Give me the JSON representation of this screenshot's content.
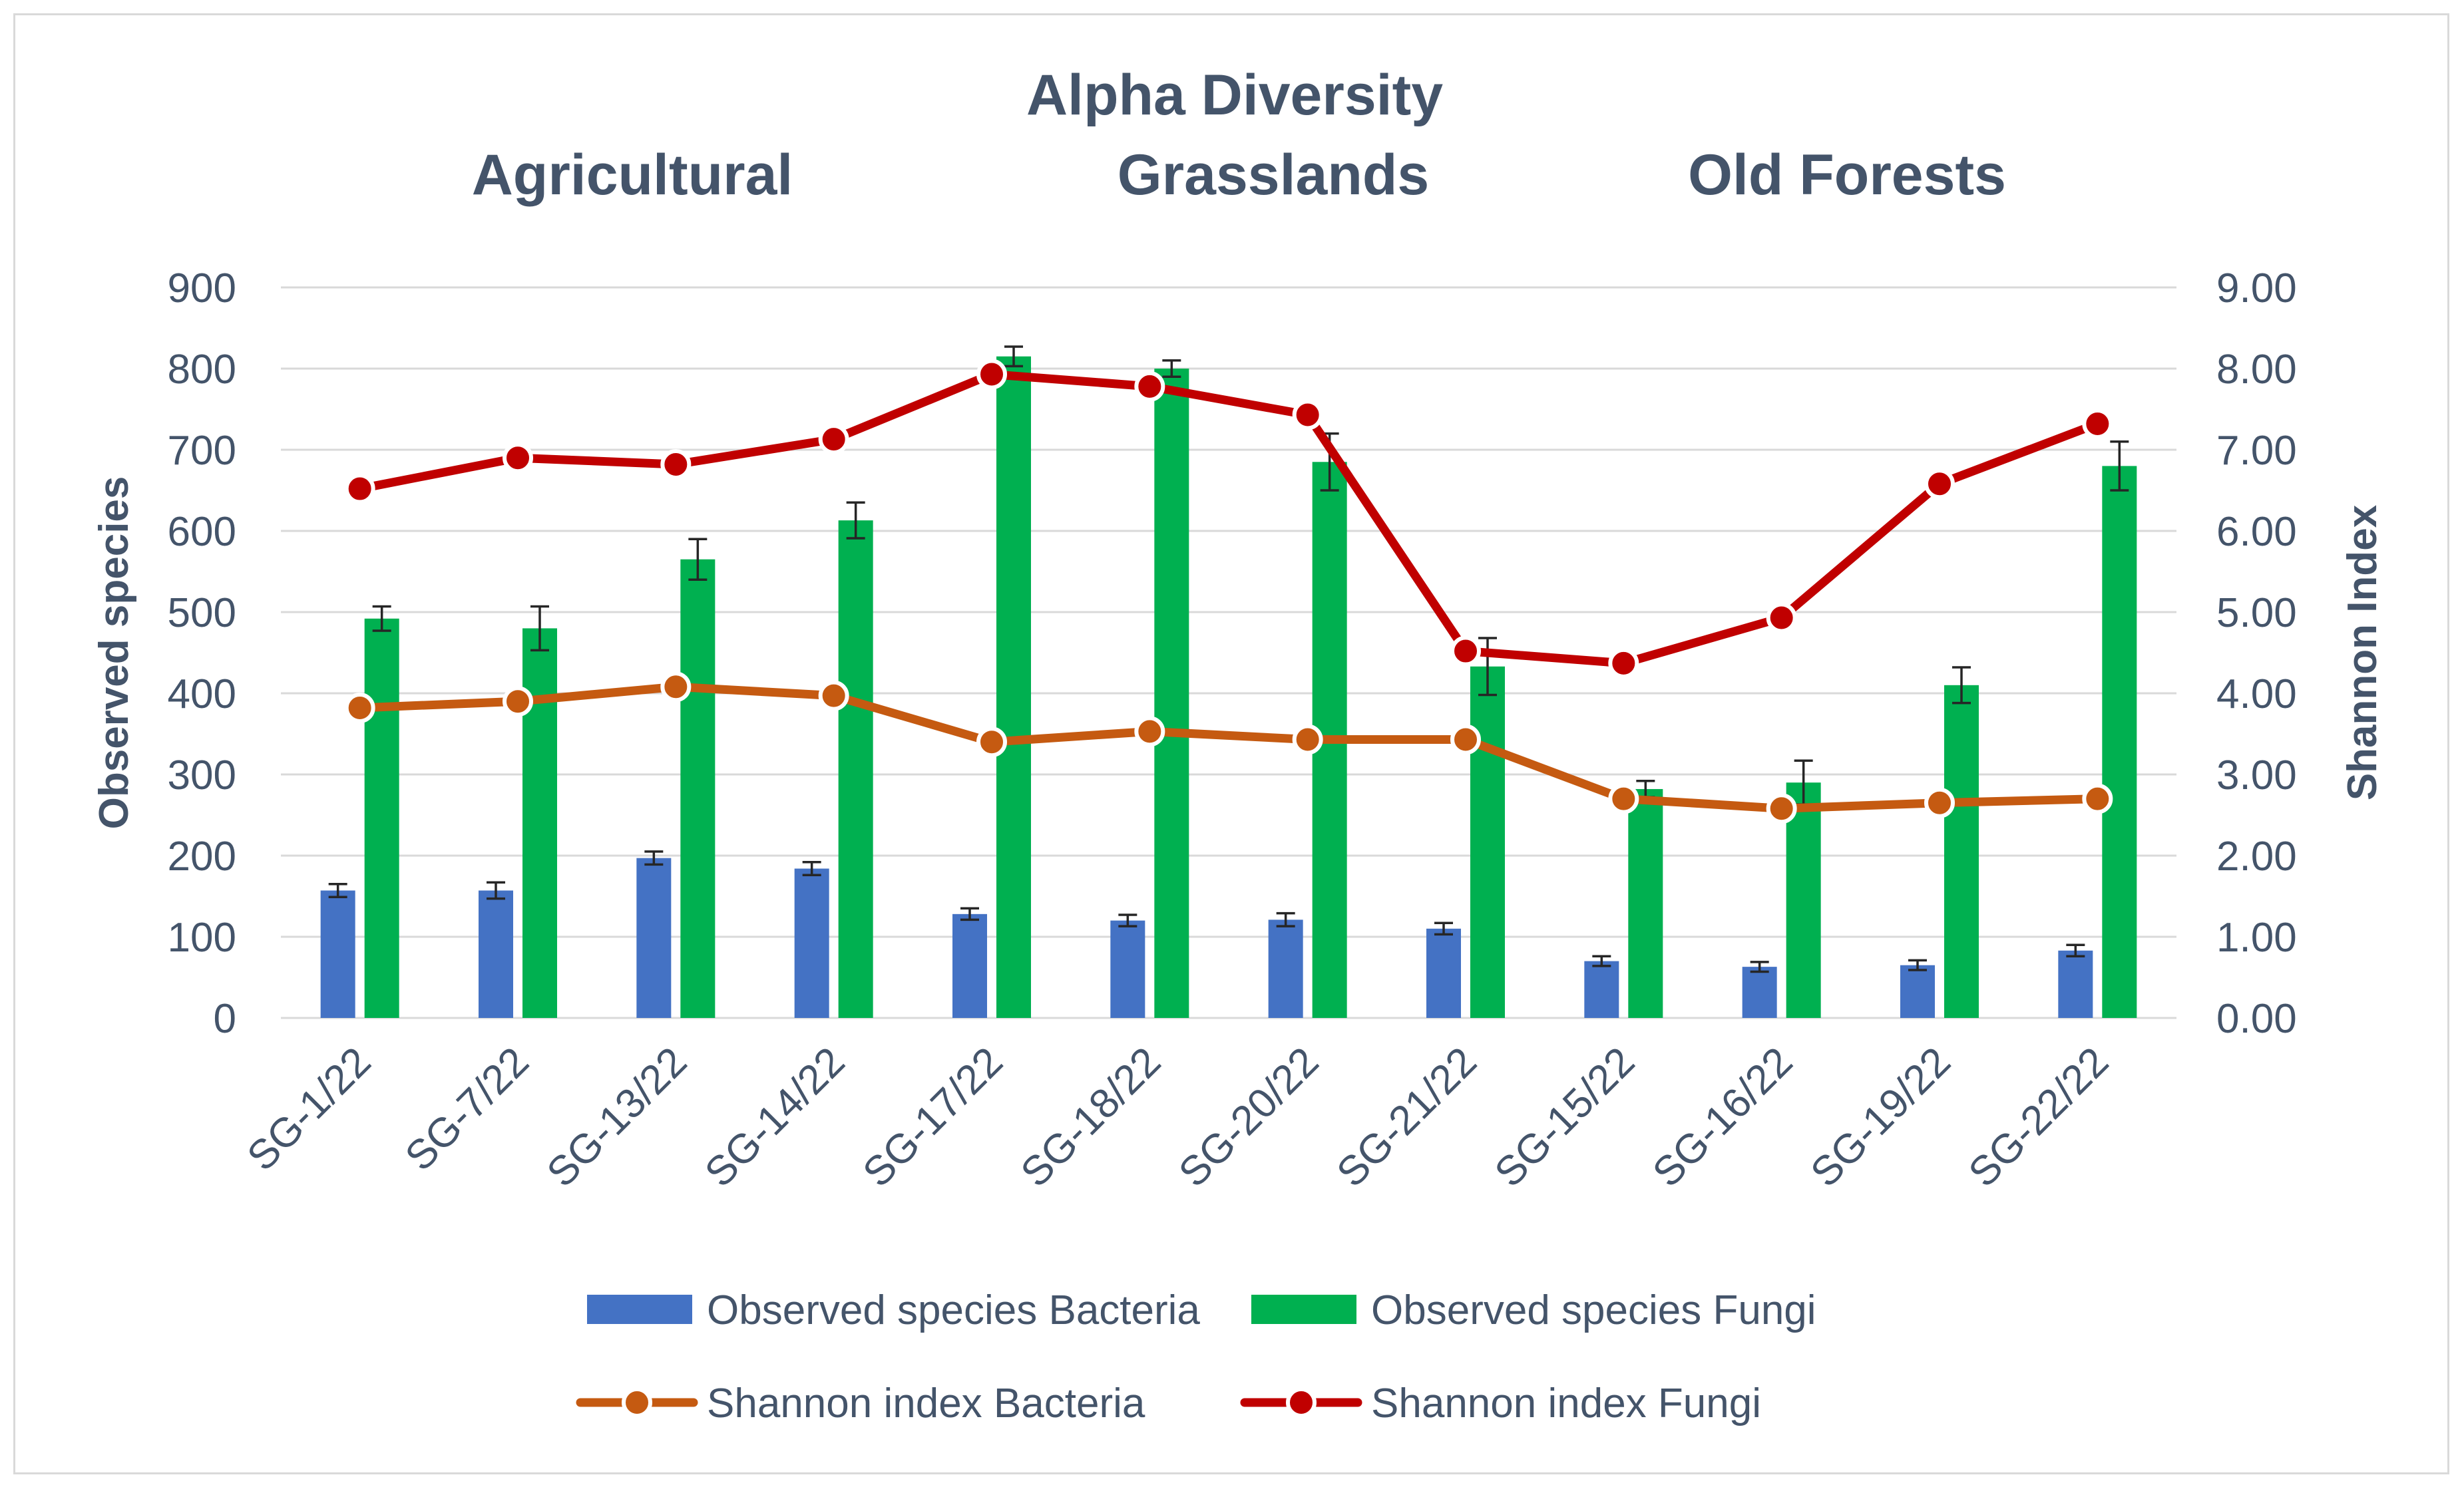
{
  "chart_data": {
    "type": "bar",
    "title": "Alpha Diversity",
    "group_labels": [
      "Agricultural",
      "Grasslands",
      "Old Forests"
    ],
    "categories": [
      "SG-1/22",
      "SG-7/22",
      "SG-13/22",
      "SG-14/22",
      "SG-17/22",
      "SG-18/22",
      "SG-20/22",
      "SG-21/22",
      "SG-15/22",
      "SG-16/22",
      "SG-19/22",
      "SG-22/22"
    ],
    "ylabel": "Observed species",
    "y2label": "Shannon Index",
    "ylim": [
      0,
      900
    ],
    "y2lim": [
      0,
      9
    ],
    "yticks": [
      "0",
      "100",
      "200",
      "300",
      "400",
      "500",
      "600",
      "700",
      "800",
      "900"
    ],
    "y2ticks": [
      "0.00",
      "1.00",
      "2.00",
      "3.00",
      "4.00",
      "5.00",
      "6.00",
      "7.00",
      "8.00",
      "9.00"
    ],
    "grid": true,
    "legend_position": "bottom",
    "bar_series": [
      {
        "name": "Observed species Bacteria",
        "color": "#4472c4",
        "values": [
          157,
          157,
          197,
          184,
          128,
          120,
          121,
          110,
          70,
          63,
          65,
          83
        ],
        "errors": [
          8,
          10,
          8,
          8,
          7,
          7,
          8,
          7,
          6,
          6,
          6,
          7
        ]
      },
      {
        "name": "Observed species Fungi",
        "color": "#00b050",
        "values": [
          492,
          480,
          565,
          613,
          815,
          800,
          685,
          433,
          282,
          290,
          410,
          680
        ],
        "errors": [
          15,
          27,
          25,
          22,
          12,
          10,
          35,
          35,
          10,
          27,
          22,
          30
        ]
      }
    ],
    "line_series": [
      {
        "name": "Shannon index Bacteria",
        "color": "#c55a11",
        "values": [
          3.82,
          3.9,
          4.08,
          3.97,
          3.4,
          3.53,
          3.43,
          3.43,
          2.7,
          2.58,
          2.65,
          2.7
        ]
      },
      {
        "name": "Shannon index Fungi",
        "color": "#c00000",
        "values": [
          6.52,
          6.9,
          6.82,
          7.13,
          7.93,
          7.78,
          7.43,
          4.52,
          4.37,
          4.93,
          6.58,
          7.32
        ]
      }
    ]
  }
}
